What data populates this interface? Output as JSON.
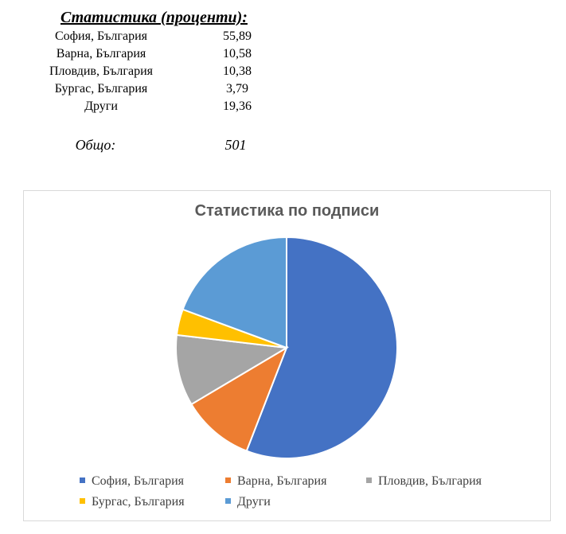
{
  "stats": {
    "title": "Статистика (проценти):",
    "rows": [
      {
        "name": "София, България",
        "value": "55,89"
      },
      {
        "name": "Варна, България",
        "value": "10,58"
      },
      {
        "name": "Пловдив, България",
        "value": "10,38"
      },
      {
        "name": "Бургас, България",
        "value": "3,79"
      },
      {
        "name": "Други",
        "value": "19,36"
      }
    ],
    "total_label": "Общо:",
    "total_value": "501"
  },
  "chart_data": {
    "type": "pie",
    "title": "Статистика по подписи",
    "categories": [
      "София, България",
      "Варна, България",
      "Пловдив, България",
      "Бургас, България",
      "Други"
    ],
    "values": [
      55.89,
      10.58,
      10.38,
      3.79,
      19.36
    ],
    "colors": [
      "#4472C4",
      "#ED7D31",
      "#A5A5A5",
      "#FFC000",
      "#5B9BD5"
    ],
    "legend_position": "bottom",
    "start_angle": "12 o'clock",
    "direction": "clockwise"
  }
}
